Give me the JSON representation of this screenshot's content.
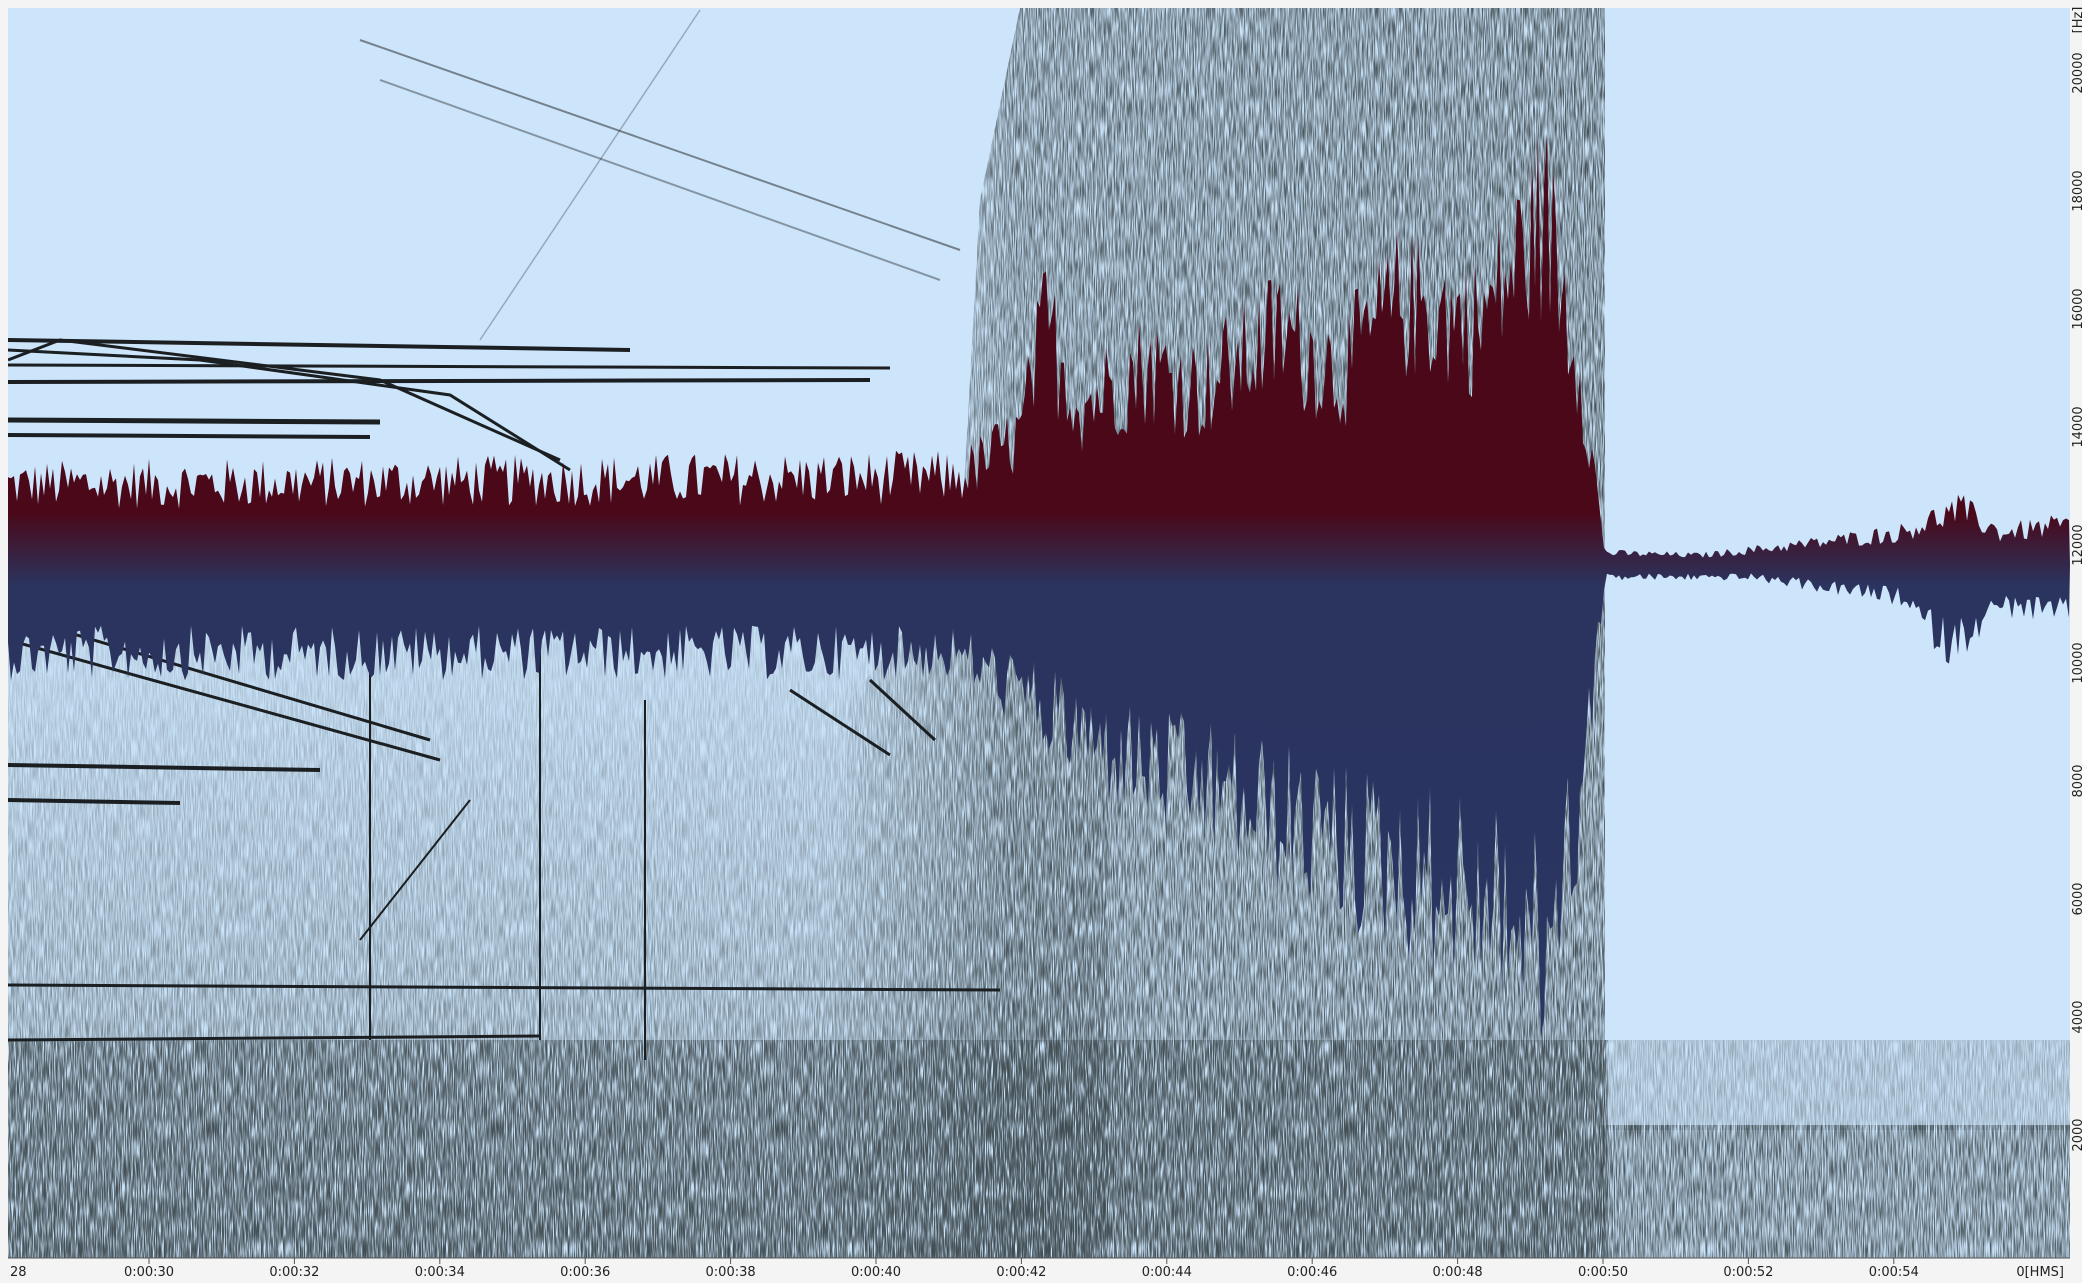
{
  "time_axis": {
    "labels": [
      "28",
      "0:00:30",
      "0:00:32",
      "0:00:34",
      "0:00:36",
      "0:00:38",
      "0:00:40",
      "0:00:42",
      "0:00:44",
      "0:00:46",
      "0:00:48",
      "0:00:50",
      "0:00:52",
      "0:00:54",
      "0[HMS]"
    ]
  },
  "frequency_axis": {
    "unit": "[Hz]",
    "labels": [
      "20000",
      "18000",
      "16000",
      "14000",
      "12000",
      "10000",
      "8000",
      "6000",
      "4000",
      "2000"
    ]
  }
}
